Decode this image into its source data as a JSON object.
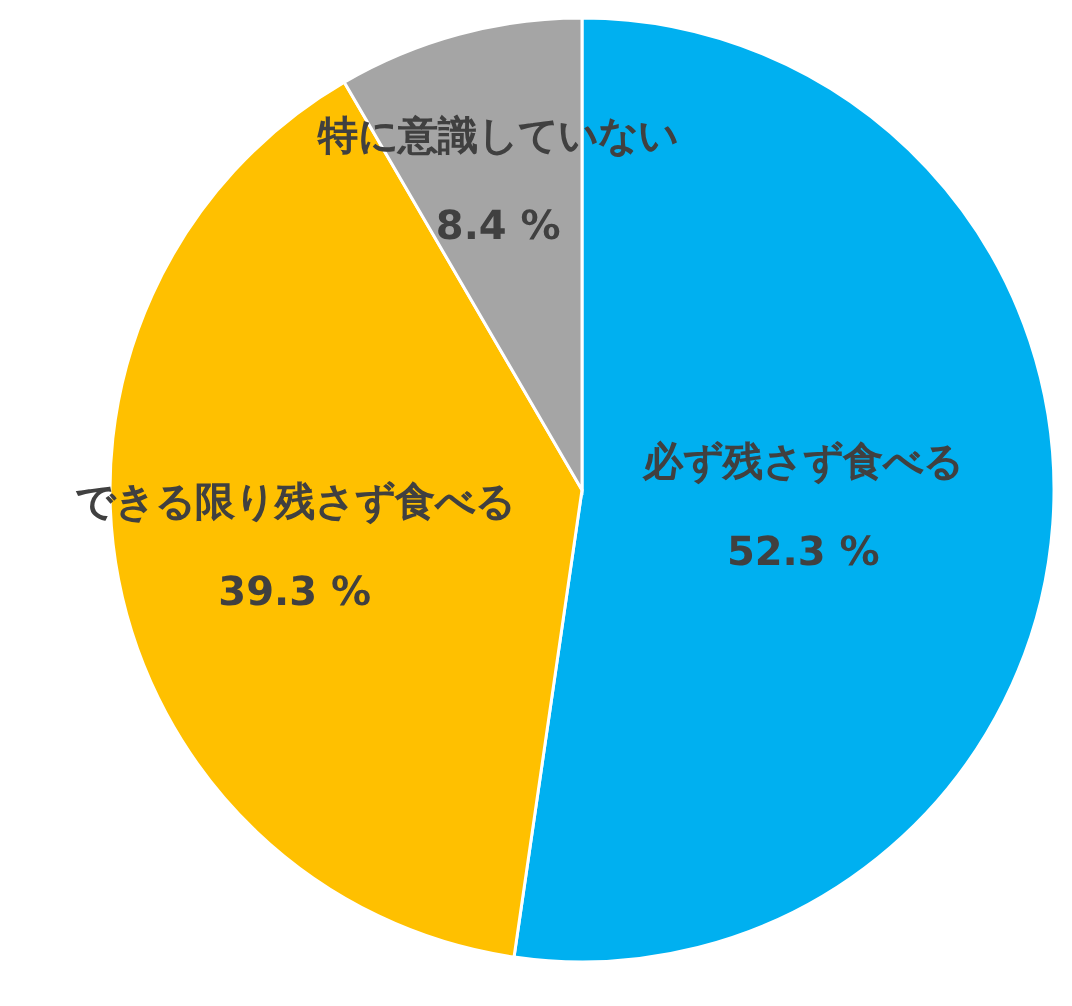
{
  "chart_data": {
    "type": "pie",
    "categories": [
      "必ず残さず食べる",
      "できる限り残さず食べる",
      "特に意識していない"
    ],
    "values": [
      52.3,
      39.3,
      8.4
    ],
    "colors": [
      "#00b0f0",
      "#ffc000",
      "#a5a5a5"
    ],
    "value_labels": [
      "52.3 %",
      "39.3 %",
      "8.4 %"
    ]
  }
}
